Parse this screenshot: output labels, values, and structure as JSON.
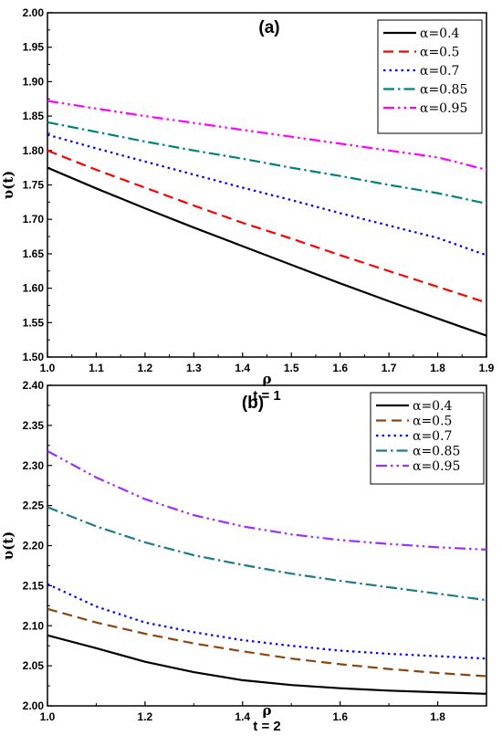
{
  "chart_data": [
    {
      "type": "line",
      "title": "(a)",
      "xlabel": "ρ",
      "subtitle": "t = 1",
      "ylabel": "υ(t)",
      "xlim": [
        1.0,
        1.9
      ],
      "ylim": [
        1.5,
        2.0
      ],
      "x_ticks": [
        "1.0",
        "1.1",
        "1.2",
        "1.3",
        "1.4",
        "1.5",
        "1.6",
        "1.7",
        "1.8",
        "1.9"
      ],
      "y_ticks": [
        "1.50",
        "1.55",
        "1.60",
        "1.65",
        "1.70",
        "1.75",
        "1.80",
        "1.85",
        "1.90",
        "1.95",
        "2.00"
      ],
      "legend_position": "top-right",
      "grid": false,
      "series": [
        {
          "name": "α=0.4",
          "color": "#000000",
          "dash": "solid",
          "points": [
            [
              1.0,
              1.775
            ],
            [
              1.1,
              1.745
            ],
            [
              1.2,
              1.716
            ],
            [
              1.3,
              1.688
            ],
            [
              1.4,
              1.661
            ],
            [
              1.5,
              1.634
            ],
            [
              1.6,
              1.607
            ],
            [
              1.7,
              1.581
            ],
            [
              1.8,
              1.556
            ],
            [
              1.9,
              1.531
            ]
          ]
        },
        {
          "name": "α=0.5",
          "color": "#ff0000",
          "dash": "dash",
          "points": [
            [
              1.0,
              1.8
            ],
            [
              1.1,
              1.772
            ],
            [
              1.2,
              1.746
            ],
            [
              1.3,
              1.72
            ],
            [
              1.4,
              1.695
            ],
            [
              1.5,
              1.672
            ],
            [
              1.6,
              1.648
            ],
            [
              1.7,
              1.625
            ],
            [
              1.8,
              1.602
            ],
            [
              1.9,
              1.579
            ]
          ]
        },
        {
          "name": "α=0.7",
          "color": "#0000ff",
          "dash": "dot",
          "points": [
            [
              1.0,
              1.823
            ],
            [
              1.1,
              1.803
            ],
            [
              1.2,
              1.784
            ],
            [
              1.3,
              1.765
            ],
            [
              1.4,
              1.746
            ],
            [
              1.5,
              1.728
            ],
            [
              1.6,
              1.709
            ],
            [
              1.7,
              1.691
            ],
            [
              1.8,
              1.673
            ],
            [
              1.9,
              1.648
            ]
          ]
        },
        {
          "name": "α=0.85",
          "color": "#008080",
          "dash": "dashdot",
          "points": [
            [
              1.0,
              1.841
            ],
            [
              1.1,
              1.827
            ],
            [
              1.2,
              1.813
            ],
            [
              1.3,
              1.8
            ],
            [
              1.4,
              1.788
            ],
            [
              1.5,
              1.775
            ],
            [
              1.6,
              1.763
            ],
            [
              1.7,
              1.75
            ],
            [
              1.8,
              1.738
            ],
            [
              1.9,
              1.723
            ]
          ]
        },
        {
          "name": "α=0.95",
          "color": "#ff00ff",
          "dash": "dashdotdot",
          "points": [
            [
              1.0,
              1.872
            ],
            [
              1.1,
              1.861
            ],
            [
              1.2,
              1.85
            ],
            [
              1.3,
              1.84
            ],
            [
              1.4,
              1.83
            ],
            [
              1.5,
              1.82
            ],
            [
              1.6,
              1.81
            ],
            [
              1.7,
              1.8
            ],
            [
              1.8,
              1.79
            ],
            [
              1.9,
              1.772
            ]
          ]
        }
      ]
    },
    {
      "type": "line",
      "title": "(b)",
      "xlabel": "ρ",
      "subtitle": "t = 2",
      "ylabel": "υ(t)",
      "xlim": [
        1.0,
        1.9
      ],
      "ylim": [
        2.0,
        2.4
      ],
      "x_ticks": [
        "1.0",
        "1.2",
        "1.4",
        "1.6",
        "1.8"
      ],
      "y_ticks": [
        "2.00",
        "2.05",
        "2.10",
        "2.15",
        "2.20",
        "2.25",
        "2.30",
        "2.35",
        "2.40"
      ],
      "legend_position": "top-right",
      "grid": false,
      "series": [
        {
          "name": "α=0.4",
          "color": "#000000",
          "dash": "solid",
          "points": [
            [
              1.0,
              2.088
            ],
            [
              1.1,
              2.072
            ],
            [
              1.2,
              2.055
            ],
            [
              1.3,
              2.042
            ],
            [
              1.4,
              2.032
            ],
            [
              1.5,
              2.026
            ],
            [
              1.6,
              2.022
            ],
            [
              1.7,
              2.019
            ],
            [
              1.8,
              2.017
            ],
            [
              1.9,
              2.015
            ]
          ]
        },
        {
          "name": "α=0.5",
          "color": "#8b4513",
          "dash": "dash",
          "points": [
            [
              1.0,
              2.121
            ],
            [
              1.1,
              2.104
            ],
            [
              1.2,
              2.09
            ],
            [
              1.3,
              2.078
            ],
            [
              1.4,
              2.068
            ],
            [
              1.5,
              2.059
            ],
            [
              1.6,
              2.052
            ],
            [
              1.7,
              2.046
            ],
            [
              1.8,
              2.041
            ],
            [
              1.9,
              2.037
            ]
          ]
        },
        {
          "name": "α=0.7",
          "color": "#0000ff",
          "dash": "dot",
          "points": [
            [
              1.0,
              2.152
            ],
            [
              1.1,
              2.124
            ],
            [
              1.2,
              2.104
            ],
            [
              1.3,
              2.092
            ],
            [
              1.4,
              2.082
            ],
            [
              1.5,
              2.075
            ],
            [
              1.6,
              2.069
            ],
            [
              1.7,
              2.065
            ],
            [
              1.8,
              2.062
            ],
            [
              1.9,
              2.059
            ]
          ]
        },
        {
          "name": "α=0.85",
          "color": "#1f7a8c",
          "dash": "dashdot",
          "points": [
            [
              1.0,
              2.248
            ],
            [
              1.1,
              2.224
            ],
            [
              1.2,
              2.204
            ],
            [
              1.3,
              2.188
            ],
            [
              1.4,
              2.176
            ],
            [
              1.5,
              2.165
            ],
            [
              1.6,
              2.156
            ],
            [
              1.7,
              2.148
            ],
            [
              1.8,
              2.14
            ],
            [
              1.9,
              2.132
            ]
          ]
        },
        {
          "name": "α=0.95",
          "color": "#9b30ff",
          "dash": "dashdotdot",
          "points": [
            [
              1.0,
              2.318
            ],
            [
              1.1,
              2.285
            ],
            [
              1.2,
              2.258
            ],
            [
              1.3,
              2.238
            ],
            [
              1.4,
              2.224
            ],
            [
              1.5,
              2.214
            ],
            [
              1.6,
              2.207
            ],
            [
              1.7,
              2.202
            ],
            [
              1.8,
              2.198
            ],
            [
              1.9,
              2.195
            ]
          ]
        }
      ]
    }
  ]
}
